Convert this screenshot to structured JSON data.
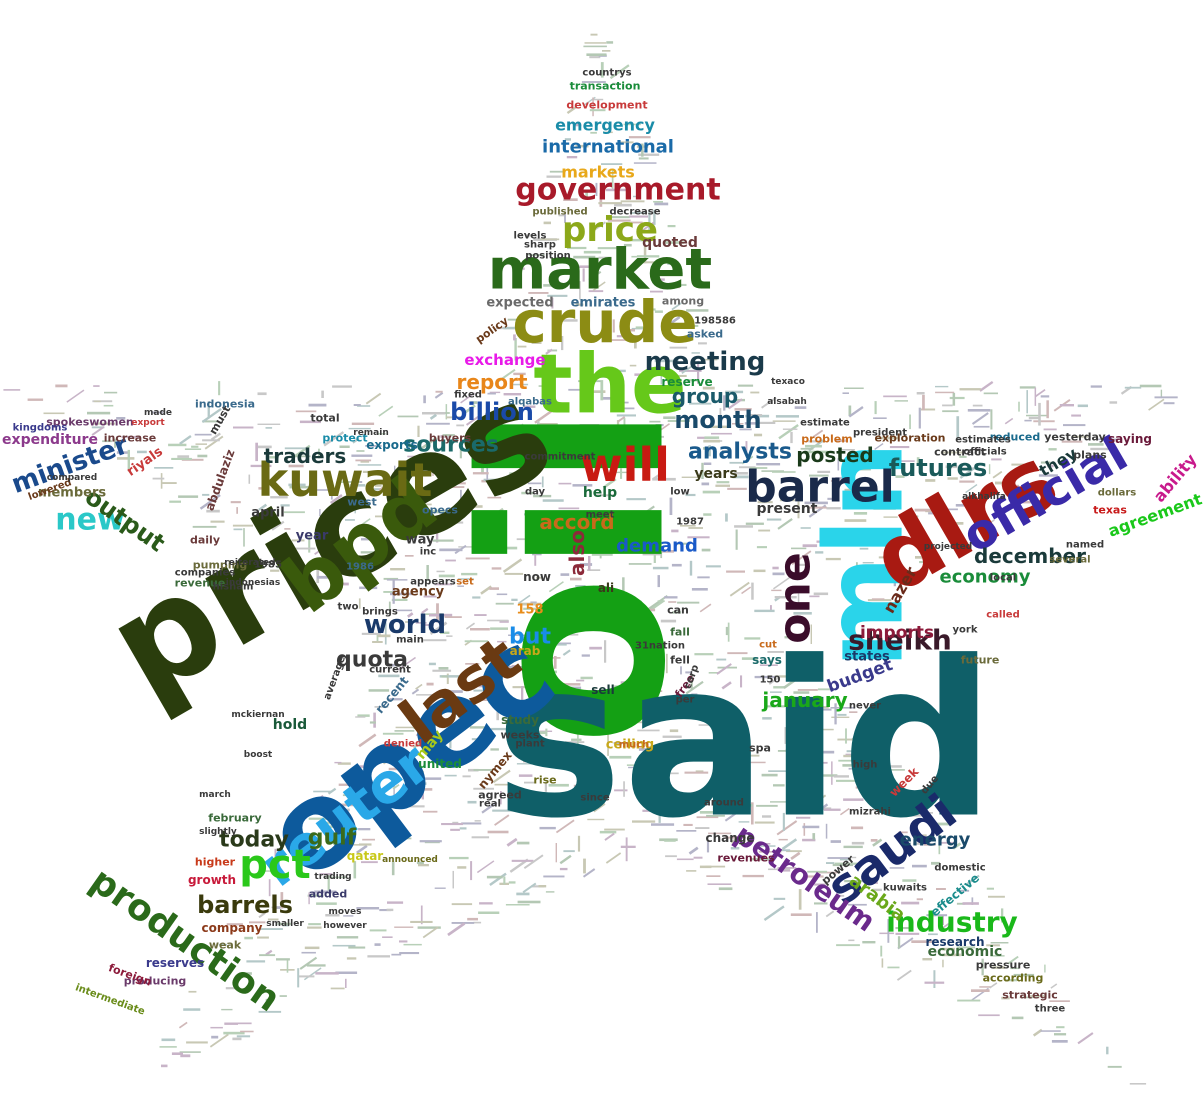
{
  "words": [
    {
      "text": "oil",
      "color": "#14a014"
    },
    {
      "text": "said",
      "color": "#0f5f68"
    },
    {
      "text": "prices",
      "color": "#2a3d0d"
    },
    {
      "text": "opec",
      "color": "#0d5a9c"
    },
    {
      "text": "mln",
      "color": "#2ad4ea"
    },
    {
      "text": "dlrs",
      "color": "#a81a12"
    },
    {
      "text": "the",
      "color": "#66c81a"
    },
    {
      "text": "bpd",
      "color": "#3a5a0c"
    },
    {
      "text": "reuter",
      "color": "#2aa8e8"
    },
    {
      "text": "crude",
      "color": "#8c8c14"
    },
    {
      "text": "market",
      "color": "#2a6a1a"
    },
    {
      "text": "last",
      "color": "#6a3a12"
    },
    {
      "text": "saudi",
      "color": "#1a2a6a"
    },
    {
      "text": "will",
      "color": "#c81a12"
    },
    {
      "text": "official",
      "color": "#3a2aa8"
    },
    {
      "text": "kuwait",
      "color": "#6a6a14"
    },
    {
      "text": "barrel",
      "color": "#1a2a4a"
    },
    {
      "text": "one",
      "color": "#3a0c2a"
    },
    {
      "text": "pct",
      "color": "#2ac81a"
    },
    {
      "text": "new",
      "color": "#2ac8c8"
    },
    {
      "text": "production",
      "color": "#2a6a1a"
    },
    {
      "text": "government",
      "color": "#a81a2a"
    },
    {
      "text": "price",
      "color": "#8ca81a"
    },
    {
      "text": "minister",
      "color": "#1a4a8c"
    },
    {
      "text": "petroleum",
      "color": "#6a2a8c"
    },
    {
      "text": "sheikh",
      "color": "#3a1a2a"
    },
    {
      "text": "world",
      "color": "#1a3a6a"
    },
    {
      "text": "output",
      "color": "#2a5a1a"
    },
    {
      "text": "barrels",
      "color": "#3a3a0c"
    },
    {
      "text": "industry",
      "color": "#1ab81a"
    },
    {
      "text": "meeting",
      "color": "#1a3a4a"
    },
    {
      "text": "month",
      "color": "#1a4a6a"
    },
    {
      "text": "futures",
      "color": "#1a5a5a"
    },
    {
      "text": "billion",
      "color": "#1a4aa8"
    },
    {
      "text": "sources",
      "color": "#1a6a6a"
    },
    {
      "text": "quota",
      "color": "#3a3a3a"
    },
    {
      "text": "gulf",
      "color": "#3a6a1a"
    },
    {
      "text": "today",
      "color": "#2a3a1a"
    },
    {
      "text": "analysts",
      "color": "#1a5a8c"
    },
    {
      "text": "report",
      "color": "#e8861a"
    },
    {
      "text": "group",
      "color": "#1a5a6a"
    },
    {
      "text": "traders",
      "color": "#1a3a3a"
    },
    {
      "text": "accord",
      "color": "#c86a1a"
    },
    {
      "text": "also",
      "color": "#8c2a3a"
    },
    {
      "text": "posted",
      "color": "#1a3a1a"
    },
    {
      "text": "january",
      "color": "#1aa81a"
    },
    {
      "text": "december",
      "color": "#1a3a3a"
    },
    {
      "text": "economy",
      "color": "#1a8c3a"
    },
    {
      "text": "energy",
      "color": "#1a4a6a"
    },
    {
      "text": "arabia",
      "color": "#6aa81a"
    },
    {
      "text": "but",
      "color": "#1a8ce8"
    },
    {
      "text": "demand",
      "color": "#1a5ac8"
    },
    {
      "text": "imports",
      "color": "#8c1a3a"
    },
    {
      "text": "budget",
      "color": "#3a3a8c"
    },
    {
      "text": "agreement",
      "color": "#1ac81a"
    },
    {
      "text": "ability",
      "color": "#c81a8c"
    },
    {
      "text": "they",
      "color": "#1a3a3a"
    },
    {
      "text": "nazer",
      "color": "#6a2a1a"
    },
    {
      "text": "exchange",
      "color": "#e81ae8"
    },
    {
      "text": "markets",
      "color": "#e8a81a"
    },
    {
      "text": "international",
      "color": "#1a6aa8"
    },
    {
      "text": "emergency",
      "color": "#1a8ca8"
    },
    {
      "text": "expected",
      "color": "#6a6a6a"
    },
    {
      "text": "emirates",
      "color": "#3a6a8c"
    },
    {
      "text": "quoted",
      "color": "#6a3a3a"
    },
    {
      "text": "help",
      "color": "#1a6a3a"
    },
    {
      "text": "years",
      "color": "#3a3a1a"
    },
    {
      "text": "present",
      "color": "#3a3a3a"
    },
    {
      "text": "expenditure",
      "color": "#8c3a8c"
    },
    {
      "text": "members",
      "color": "#6a6a3a"
    },
    {
      "text": "riyals",
      "color": "#c83a3a"
    },
    {
      "text": "abdulaziz",
      "color": "#6a3a3a"
    },
    {
      "text": "april",
      "color": "#3a3a3a"
    },
    {
      "text": "year",
      "color": "#3a3a6a"
    },
    {
      "text": "agency",
      "color": "#6a3a1a"
    },
    {
      "text": "way",
      "color": "#3a3a3a"
    },
    {
      "text": "now",
      "color": "#3a3a3a"
    },
    {
      "text": "ali",
      "color": "#3a3a1a"
    },
    {
      "text": "158",
      "color": "#e88c1a"
    },
    {
      "text": "arab",
      "color": "#c8a81a"
    },
    {
      "text": "sell",
      "color": "#1a3a3a"
    },
    {
      "text": "recent",
      "color": "#3a6a8c"
    },
    {
      "text": "may",
      "color": "#a8c81a"
    },
    {
      "text": "study",
      "color": "#3a6a3a"
    },
    {
      "text": "hold",
      "color": "#1a5a3a"
    },
    {
      "text": "united",
      "color": "#1a8c3a"
    },
    {
      "text": "nymex",
      "color": "#6a3a1a"
    },
    {
      "text": "qatar",
      "color": "#c8c81a"
    },
    {
      "text": "february",
      "color": "#3a6a3a"
    },
    {
      "text": "growth",
      "color": "#c81a3a"
    },
    {
      "text": "higher",
      "color": "#c83a1a"
    },
    {
      "text": "added",
      "color": "#3a3a6a"
    },
    {
      "text": "company",
      "color": "#8c3a1a"
    },
    {
      "text": "weak",
      "color": "#6a6a3a"
    },
    {
      "text": "reserves",
      "color": "#3a3a8c"
    },
    {
      "text": "producing",
      "color": "#6a3a6a"
    },
    {
      "text": "foreign",
      "color": "#8c1a3a"
    },
    {
      "text": "intermediate",
      "color": "#6a8c1a"
    },
    {
      "text": "ceiling",
      "color": "#c8a81a"
    },
    {
      "text": "states",
      "color": "#1a3a6a"
    },
    {
      "text": "says",
      "color": "#1a6a6a"
    },
    {
      "text": "week",
      "color": "#c83a3a"
    },
    {
      "text": "change",
      "color": "#3a3a3a"
    },
    {
      "text": "revenues",
      "color": "#6a1a3a"
    },
    {
      "text": "effective",
      "color": "#1a8c8c"
    },
    {
      "text": "research",
      "color": "#1a3a6a"
    },
    {
      "text": "economic",
      "color": "#3a6a3a"
    },
    {
      "text": "strategic",
      "color": "#6a3a3a"
    },
    {
      "text": "pressure",
      "color": "#3a3a3a"
    },
    {
      "text": "according",
      "color": "#6a6a1a"
    },
    {
      "text": "reduced",
      "color": "#1a6a8c"
    },
    {
      "text": "contract",
      "color": "#3a3a3a"
    },
    {
      "text": "exploration",
      "color": "#6a3a1a"
    },
    {
      "text": "yesterday",
      "color": "#3a3a3a"
    },
    {
      "text": "saying",
      "color": "#6a1a3a"
    },
    {
      "text": "plans",
      "color": "#3a3a3a"
    },
    {
      "text": "texas",
      "color": "#c81a1a"
    },
    {
      "text": "protect",
      "color": "#1a8ca8"
    },
    {
      "text": "exports",
      "color": "#1a6a8c"
    },
    {
      "text": "buyers",
      "color": "#6a3a3a"
    },
    {
      "text": "problem",
      "color": "#c86a1a"
    },
    {
      "text": "opecs",
      "color": "#3a6a8c"
    },
    {
      "text": "west",
      "color": "#3a6a8c"
    },
    {
      "text": "daily",
      "color": "#6a3a3a"
    },
    {
      "text": "revenue",
      "color": "#3a6a3a"
    },
    {
      "text": "pumping",
      "color": "#6a6a3a"
    },
    {
      "text": "total",
      "color": "#3a3a3a"
    },
    {
      "text": "increase",
      "color": "#6a3a3a"
    },
    {
      "text": "must",
      "color": "#3a3a3a"
    },
    {
      "text": "reserve",
      "color": "#1a8c3a"
    },
    {
      "text": "asked",
      "color": "#3a6a8c"
    },
    {
      "text": "policy",
      "color": "#6a3a1a"
    },
    {
      "text": "among",
      "color": "#6a6a6a"
    },
    {
      "text": "development",
      "color": "#c83a3a"
    },
    {
      "text": "transaction",
      "color": "#1a8c3a"
    },
    {
      "text": "spokeswomen",
      "color": "#6a3a6a"
    },
    {
      "text": "indonesia",
      "color": "#3a6a8c"
    },
    {
      "text": "fell",
      "color": "#3a3a3a"
    },
    {
      "text": "fall",
      "color": "#3a6a3a"
    },
    {
      "text": "free",
      "color": "#6a1a3a"
    },
    {
      "text": "corp",
      "color": "#3a3a3a"
    },
    {
      "text": "can",
      "color": "#3a3a3a"
    },
    {
      "text": "spa",
      "color": "#3a3a3a"
    },
    {
      "text": "rise",
      "color": "#6a6a1a"
    },
    {
      "text": "since",
      "color": "#3a3a3a"
    },
    {
      "text": "weeks",
      "color": "#3a3a3a"
    },
    {
      "text": "future",
      "color": "#6a6a3a"
    },
    {
      "text": "power",
      "color": "#3a3a3a"
    },
    {
      "text": "dollars",
      "color": "#6a6a3a"
    },
    {
      "text": "agreed",
      "color": "#3a3a3a"
    },
    {
      "text": "lowered",
      "color": "#6a3a1a"
    },
    {
      "text": "kingdoms",
      "color": "#3a3a8c"
    },
    {
      "text": "countrys",
      "color": "#3a3a3a"
    },
    {
      "text": "published",
      "color": "#6a6a3a"
    },
    {
      "text": "decrease",
      "color": "#3a3a3a"
    },
    {
      "text": "sharp",
      "color": "#3a3a3a"
    },
    {
      "text": "levels",
      "color": "#3a3a3a"
    },
    {
      "text": "position",
      "color": "#3a3a3a"
    },
    {
      "text": "198586",
      "color": "#3a3a3a"
    },
    {
      "text": "alqabas",
      "color": "#3a6a8c"
    },
    {
      "text": "fixed",
      "color": "#3a3a3a"
    },
    {
      "text": "commitment",
      "color": "#3a3a3a"
    },
    {
      "text": "meet",
      "color": "#3a3a3a"
    },
    {
      "text": "day",
      "color": "#3a3a3a"
    },
    {
      "text": "low",
      "color": "#3a3a3a"
    },
    {
      "text": "1987",
      "color": "#3a3a3a"
    },
    {
      "text": "set",
      "color": "#c86a1a"
    },
    {
      "text": "appears",
      "color": "#3a3a3a"
    },
    {
      "text": "inc",
      "color": "#3a3a3a"
    },
    {
      "text": "1986",
      "color": "#3a6a8c"
    },
    {
      "text": "1985",
      "color": "#3a3a3a"
    },
    {
      "text": "hisham",
      "color": "#3a3a3a"
    },
    {
      "text": "companies",
      "color": "#3a3a3a"
    },
    {
      "text": "two",
      "color": "#3a3a3a"
    },
    {
      "text": "brings",
      "color": "#3a3a3a"
    },
    {
      "text": "main",
      "color": "#3a3a3a"
    },
    {
      "text": "current",
      "color": "#3a3a3a"
    },
    {
      "text": "average",
      "color": "#3a3a3a"
    },
    {
      "text": "denied",
      "color": "#c83a3a"
    },
    {
      "text": "plant",
      "color": "#3a3a3a"
    },
    {
      "text": "real",
      "color": "#3a3a3a"
    },
    {
      "text": "around",
      "color": "#3a3a3a"
    },
    {
      "text": "much",
      "color": "#c86a1a"
    },
    {
      "text": "31nation",
      "color": "#3a3a3a"
    },
    {
      "text": "per",
      "color": "#3a3a3a"
    },
    {
      "text": "cut",
      "color": "#c86a1a"
    },
    {
      "text": "150",
      "color": "#3a3a3a"
    },
    {
      "text": "never",
      "color": "#3a3a3a"
    },
    {
      "text": "high",
      "color": "#3a3a3a"
    },
    {
      "text": "due",
      "color": "#3a3a3a"
    },
    {
      "text": "mizrahi",
      "color": "#3a3a3a"
    },
    {
      "text": "york",
      "color": "#3a3a3a"
    },
    {
      "text": "called",
      "color": "#c83a3a"
    },
    {
      "text": "local",
      "color": "#3a3a3a"
    },
    {
      "text": "several",
      "color": "#6a6a3a"
    },
    {
      "text": "named",
      "color": "#3a3a3a"
    },
    {
      "text": "officials",
      "color": "#3a3a3a"
    },
    {
      "text": "estimates",
      "color": "#3a3a3a"
    },
    {
      "text": "estimate",
      "color": "#3a3a3a"
    },
    {
      "text": "president",
      "color": "#3a3a3a"
    },
    {
      "text": "domestic",
      "color": "#3a3a3a"
    },
    {
      "text": "kuwaits",
      "color": "#3a3a3a"
    },
    {
      "text": "three",
      "color": "#3a3a3a"
    },
    {
      "text": "reiterated",
      "color": "#3a3a3a"
    },
    {
      "text": "indonesias",
      "color": "#3a3a3a"
    },
    {
      "text": "mckiernan",
      "color": "#3a3a3a"
    },
    {
      "text": "boost",
      "color": "#3a3a3a"
    },
    {
      "text": "march",
      "color": "#3a3a3a"
    },
    {
      "text": "slightly",
      "color": "#3a3a3a"
    },
    {
      "text": "moves",
      "color": "#3a3a3a"
    },
    {
      "text": "however",
      "color": "#3a3a3a"
    },
    {
      "text": "smaller",
      "color": "#3a3a3a"
    },
    {
      "text": "announced",
      "color": "#6a6a1a"
    },
    {
      "text": "trading",
      "color": "#3a3a3a"
    },
    {
      "text": "remain",
      "color": "#3a3a3a"
    },
    {
      "text": "made",
      "color": "#3a3a3a"
    },
    {
      "text": "export",
      "color": "#c83a3a"
    },
    {
      "text": "compared",
      "color": "#3a3a3a"
    },
    {
      "text": "projected",
      "color": "#3a3a3a"
    },
    {
      "text": "alkhalifa",
      "color": "#3a3a3a"
    },
    {
      "text": "texaco",
      "color": "#3a3a3a"
    },
    {
      "text": "alsabah",
      "color": "#3a3a3a"
    },
    {
      "text": "six",
      "color": "#3a3a3a"
    },
    {
      "text": "guard",
      "color": "#3a3a3a"
    },
    {
      "text": "sweet",
      "color": "#3a3a3a"
    },
    {
      "text": "refinery",
      "color": "#3a3a3a"
    }
  ]
}
